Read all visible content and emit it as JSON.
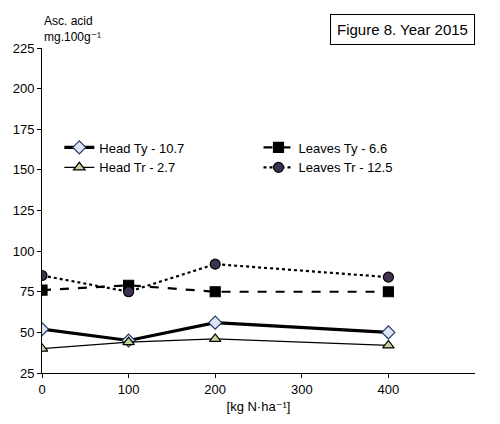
{
  "chart_data": {
    "type": "line",
    "title": "Figure 8. Year 2015",
    "y_label": "Asc. acid\nmg.100g⁻¹",
    "x_label": "[kg N·ha⁻¹]",
    "x": [
      0,
      100,
      200,
      400
    ],
    "series": [
      {
        "name": "Head Ty - 10.7",
        "color": "#000000",
        "marker": "diamond",
        "line_style": "solid",
        "values": [
          52,
          45,
          56,
          50
        ]
      },
      {
        "name": "Leaves Ty - 6.6",
        "color": "#000000",
        "marker": "square",
        "line_style": "dash",
        "values": [
          76,
          79,
          75,
          75
        ]
      },
      {
        "name": "Head Tr - 2.7",
        "color": "#000000",
        "marker": "triangle-up",
        "line_style": "solid",
        "values": [
          40,
          44,
          46,
          42
        ]
      },
      {
        "name": "Leaves Tr - 12.5",
        "color": "#000000",
        "marker": "circle",
        "line_style": "dot",
        "values": [
          85,
          75,
          92,
          84
        ]
      }
    ],
    "xlim": [
      0,
      500
    ],
    "xticks": [
      0,
      100,
      200,
      300,
      400
    ],
    "ylim": [
      25,
      225
    ],
    "yticks": [
      25,
      50,
      75,
      100,
      125,
      150,
      175,
      200,
      225
    ],
    "grid": false,
    "legend": "upper left"
  }
}
